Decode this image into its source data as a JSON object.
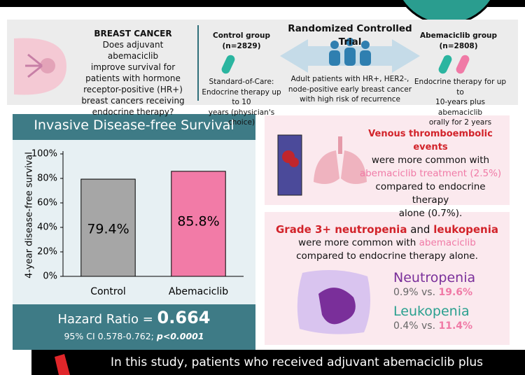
{
  "header": {
    "title": "BREAST CANCER",
    "question": [
      "Does adjuvant abemaciclib",
      "improve survival for",
      "patients with hormone",
      "receptor-positive (HR+)",
      "breast cancers receiving",
      "endocrine therapy?"
    ]
  },
  "trial": {
    "title": "Randomized Controlled Trial",
    "population": [
      "Adult patients with HR+, HER2-,",
      "node-positive early breast cancer",
      "with high risk of recurrence"
    ],
    "control": {
      "name": "Control group",
      "n": "(n=2829)",
      "treatment": [
        "Standard-of-Care:",
        "Endocrine therapy up to 10",
        "years (physician's choice)"
      ]
    },
    "abemaciclib": {
      "name": "Abemaciclib group",
      "n": "(n=2808)",
      "treatment": [
        "Endocrine therapy for up to",
        "10-years plus abemaciclib",
        "orally for 2 years"
      ]
    }
  },
  "chart": {
    "type": "bar",
    "title": "Invasive Disease-free Survival",
    "y_label": "4-year disease-free survival",
    "categories": [
      "Control",
      "Abemaciclib"
    ],
    "values": [
      79.4,
      85.8
    ],
    "value_labels": [
      "79.4%",
      "85.8%"
    ],
    "colors": [
      "#a6a6a6",
      "#f27ba7"
    ],
    "ylim": [
      0,
      100
    ],
    "yticks": [
      {
        "value": 0,
        "label": "0%"
      },
      {
        "value": 20,
        "label": "20%"
      },
      {
        "value": 40,
        "label": "40%"
      },
      {
        "value": 60,
        "label": "60%"
      },
      {
        "value": 80,
        "label": "80%"
      },
      {
        "value": 100,
        "label": "100%"
      }
    ]
  },
  "hazard": {
    "label": "Hazard Ratio =",
    "value": 0.664,
    "ci": "95% CI 0.578-0.762;",
    "p": "p<0.0001"
  },
  "vte": {
    "headline": "Venous thromboembolic events",
    "lines": [
      "were more common with",
      "abemaciclib treatment (2.5%)",
      "compared to endocrine therapy",
      "alone (0.7%)."
    ]
  },
  "neutropenia_panel": {
    "headline": [
      "Grade 3+ neutropenia",
      "and",
      "leukopenia"
    ],
    "line2": [
      "were more common with",
      "abemaciclib"
    ],
    "line3": "compared to endocrine therapy alone.",
    "neutropenia": {
      "name": "Neutropenia",
      "control": "0.9% vs.",
      "abemaciclib": "19.6%"
    },
    "leukopenia": {
      "name": "Leukopenia",
      "control": "0.4% vs.",
      "abemaciclib": "11.4%"
    }
  },
  "conclusion": "In this study, patients who received adjuvant abemaciclib plus"
}
